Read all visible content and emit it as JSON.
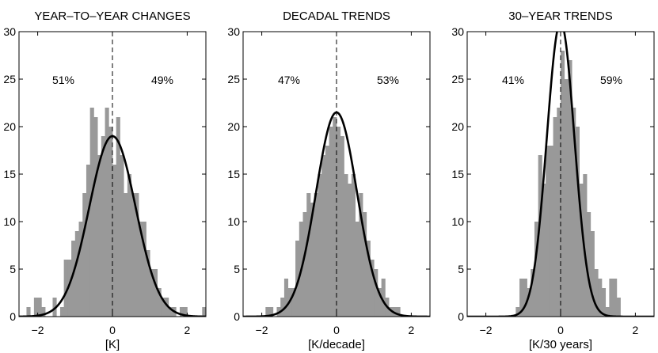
{
  "chart_data": [
    {
      "type": "bar",
      "title": "YEAR–TO–YEAR CHANGES",
      "xlabel": "[K]",
      "ylabel": "",
      "xlim": [
        -2.5,
        2.5
      ],
      "ylim": [
        0,
        30
      ],
      "xticks": [
        -2,
        0,
        2
      ],
      "yticks": [
        0,
        5,
        10,
        15,
        20,
        25,
        30
      ],
      "bin_width": 0.1,
      "bin_centers": [
        -2.25,
        -2.15,
        -2.05,
        -1.95,
        -1.85,
        -1.75,
        -1.65,
        -1.55,
        -1.45,
        -1.35,
        -1.25,
        -1.15,
        -1.05,
        -0.95,
        -0.85,
        -0.75,
        -0.65,
        -0.55,
        -0.45,
        -0.35,
        -0.25,
        -0.15,
        -0.05,
        0.05,
        0.15,
        0.25,
        0.35,
        0.45,
        0.55,
        0.65,
        0.75,
        0.85,
        0.95,
        1.05,
        1.15,
        1.25,
        1.35,
        1.45,
        1.55,
        1.65,
        1.75,
        1.85,
        1.95,
        2.05,
        2.15,
        2.25,
        2.35,
        2.45
      ],
      "counts": [
        1,
        0,
        2,
        2,
        1,
        0,
        0,
        2,
        0,
        1,
        6,
        6,
        8,
        9,
        10,
        13,
        16,
        22,
        21,
        17,
        19,
        22,
        20,
        16,
        21,
        17,
        13,
        15,
        13,
        13,
        10,
        10,
        7,
        5,
        5,
        3,
        2,
        2,
        1,
        1,
        0,
        1,
        1,
        0,
        0,
        0,
        0,
        1
      ],
      "fit_peak": 19,
      "fit_sigma": 0.62,
      "pct_left": "51%",
      "pct_right": "49%",
      "vline_x": 0
    },
    {
      "type": "bar",
      "title": "DECADAL TRENDS",
      "xlabel": "[K/decade]",
      "ylabel": "",
      "xlim": [
        -2.5,
        2.5
      ],
      "ylim": [
        0,
        30
      ],
      "xticks": [
        -2,
        0,
        2
      ],
      "yticks": [
        0,
        5,
        10,
        15,
        20,
        25,
        30
      ],
      "bin_width": 0.1,
      "bin_centers": [
        -2.25,
        -2.15,
        -2.05,
        -1.95,
        -1.85,
        -1.75,
        -1.65,
        -1.55,
        -1.45,
        -1.35,
        -1.25,
        -1.15,
        -1.05,
        -0.95,
        -0.85,
        -0.75,
        -0.65,
        -0.55,
        -0.45,
        -0.35,
        -0.25,
        -0.15,
        -0.05,
        0.05,
        0.15,
        0.25,
        0.35,
        0.45,
        0.55,
        0.65,
        0.75,
        0.85,
        0.95,
        1.05,
        1.15,
        1.25,
        1.35,
        1.45,
        1.55,
        1.65,
        1.75,
        1.85,
        1.95,
        2.05,
        2.15,
        2.25,
        2.35,
        2.45
      ],
      "counts": [
        0,
        0,
        0,
        0,
        1,
        1,
        0,
        1,
        2,
        4,
        3,
        3,
        8,
        10,
        11,
        13,
        12,
        13,
        15,
        17,
        18,
        20,
        21,
        20,
        19,
        15,
        14,
        15,
        10,
        13,
        11,
        8,
        6,
        5,
        3,
        4,
        2,
        1,
        1,
        1,
        0,
        0,
        0,
        0,
        0,
        0,
        0,
        0
      ],
      "fit_peak": 21.5,
      "fit_sigma": 0.55,
      "pct_left": "47%",
      "pct_right": "53%",
      "vline_x": 0
    },
    {
      "type": "bar",
      "title": "30–YEAR TRENDS",
      "xlabel": "[K/30 years]",
      "ylabel": "",
      "xlim": [
        -2.5,
        2.5
      ],
      "ylim": [
        0,
        30
      ],
      "xticks": [
        -2,
        0,
        2
      ],
      "yticks": [
        0,
        5,
        10,
        15,
        20,
        25,
        30
      ],
      "bin_width": 0.1,
      "bin_centers": [
        -1.15,
        -1.05,
        -0.95,
        -0.85,
        -0.75,
        -0.65,
        -0.55,
        -0.45,
        -0.35,
        -0.25,
        -0.15,
        -0.05,
        0.05,
        0.15,
        0.25,
        0.35,
        0.45,
        0.55,
        0.65,
        0.75,
        0.85,
        0.95,
        1.05,
        1.15,
        1.25,
        1.35,
        1.45,
        1.55
      ],
      "counts": [
        1,
        4,
        4,
        3,
        5,
        10,
        17,
        14,
        18,
        18,
        21,
        22,
        28,
        25,
        27,
        22,
        20,
        14,
        15,
        11,
        9,
        5,
        4,
        3,
        1,
        4,
        4,
        2
      ],
      "fit_peak": 31,
      "fit_sigma": 0.37,
      "pct_left": "41%",
      "pct_right": "59%",
      "vline_x": 0
    }
  ]
}
